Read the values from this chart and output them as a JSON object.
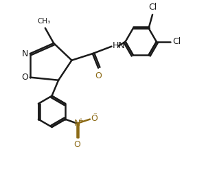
{
  "bg_color": "#ffffff",
  "line_color": "#1a1a1a",
  "no2_color": "#8B6914",
  "bond_lw": 1.8,
  "figsize": [
    3.0,
    2.81
  ],
  "dpi": 100,
  "xlim": [
    0,
    10
  ],
  "ylim": [
    0,
    10
  ]
}
